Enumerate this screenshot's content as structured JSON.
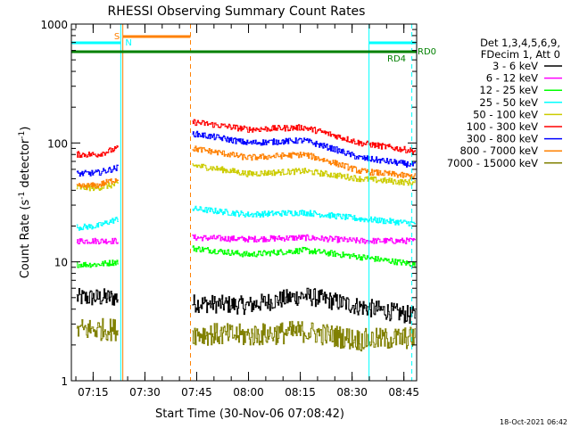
{
  "chart_data": {
    "type": "line",
    "title": "RHESSI Observing Summary Count Rates",
    "xlabel": "Start Time (30-Nov-06 07:08:42)",
    "ylabel_main": "Count Rate (s",
    "ylabel_sup1": "-1",
    "ylabel_mid": " detector",
    "ylabel_sup2": "-1",
    "ylabel_end": ")",
    "yscale": "log",
    "ylim": [
      1,
      1000
    ],
    "xlim_minutes": [
      0,
      100
    ],
    "x_ticks": [
      {
        "label": "07:15",
        "minute": 6.3
      },
      {
        "label": "07:30",
        "minute": 21.3
      },
      {
        "label": "07:45",
        "minute": 36.3
      },
      {
        "label": "08:00",
        "minute": 51.3
      },
      {
        "label": "08:15",
        "minute": 66.3
      },
      {
        "label": "08:30",
        "minute": 81.3
      },
      {
        "label": "08:45",
        "minute": 96.3
      }
    ],
    "y_ticks": [
      {
        "label": "1",
        "value": 1
      },
      {
        "label": "10",
        "value": 10
      },
      {
        "label": "100",
        "value": 100
      },
      {
        "label": "1000",
        "value": 1000
      }
    ],
    "legend_header": [
      "Det 1,3,4,5,6,9,",
      "FDecim 1, Att 0"
    ],
    "legend_position": "right",
    "data_gap_minutes": [
      14.3,
      34.5
    ],
    "series": [
      {
        "name": "3 - 6 keV",
        "color": "#000000",
        "before": [
          5,
          5,
          5
        ],
        "after": [
          4.5,
          4.3,
          5.2,
          4.2,
          3.5
        ]
      },
      {
        "name": "6 - 12 keV",
        "color": "#ff00ff",
        "before": [
          15,
          15,
          15
        ],
        "after": [
          16,
          15.5,
          16,
          15,
          15
        ]
      },
      {
        "name": "12 - 25 keV",
        "color": "#00ff00",
        "before": [
          9.5,
          9.5,
          10
        ],
        "after": [
          13,
          11.5,
          12.5,
          11,
          9.5
        ]
      },
      {
        "name": "25 - 50 keV",
        "color": "#00ffff",
        "before": [
          19.5,
          20,
          23
        ],
        "after": [
          28,
          25,
          26,
          23,
          21
        ]
      },
      {
        "name": "50 - 100 keV",
        "color": "#cccc00",
        "before": [
          42,
          42,
          45
        ],
        "after": [
          65,
          55,
          58,
          50,
          46
        ]
      },
      {
        "name": "100 - 300 keV",
        "color": "#ff0000",
        "before": [
          80,
          80,
          90
        ],
        "after": [
          150,
          130,
          135,
          100,
          85
        ]
      },
      {
        "name": "300 - 800 keV",
        "color": "#0000ff",
        "before": [
          55,
          56,
          62
        ],
        "after": [
          120,
          100,
          105,
          75,
          65
        ]
      },
      {
        "name": "800 - 7000 keV",
        "color": "#ff8000",
        "before": [
          43,
          44,
          50
        ],
        "after": [
          90,
          75,
          80,
          58,
          52
        ]
      },
      {
        "name": "7000 - 15000 keV",
        "color": "#808000",
        "before": [
          2.7,
          2.7,
          2.7
        ],
        "after": [
          2.5,
          2.4,
          2.6,
          2.2,
          2.3
        ]
      }
    ],
    "annotations": [
      {
        "text": "S",
        "color": "#ff8000"
      },
      {
        "text": "N",
        "color": "#00ffff"
      },
      {
        "text": "RD4",
        "color": "#008000"
      },
      {
        "text": "RD0",
        "color": "#008000"
      }
    ],
    "timestamp": "18-Oct-2021 06:42"
  }
}
